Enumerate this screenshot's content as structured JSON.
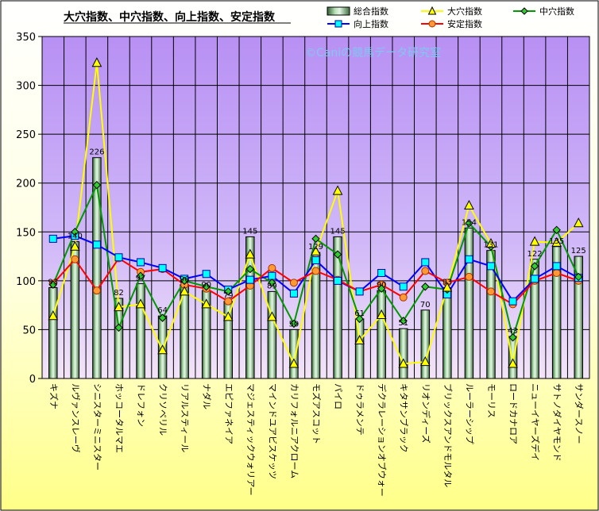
{
  "chart_data": {
    "type": "bar",
    "title": "大穴指数、中穴指数、向上指数、安定指数",
    "watermark": "©Caniの競馬データ研究室",
    "categories": [
      "キズナ",
      "ルヴァンスレーヴ",
      "シニスターミニスター",
      "ホッコータルマエ",
      "ドレフォン",
      "クリソベリル",
      "リアルスティール",
      "ナダル",
      "エピファネイア",
      "マジェスティックウォリアー",
      "マインドユアビスケッツ",
      "カリフォルニアクローム",
      "モズアスコット",
      "パイロ",
      "ドゥラメンテ",
      "デクラレーションオブウォー",
      "キタサンブラック",
      "リオンディーズ",
      "ブリックスアンドモルタル",
      "ルーラーシップ",
      "モーリス",
      "ロードカナロア",
      "ニューイヤーズデイ",
      "サトノダイヤモンド",
      "サンダースノー"
    ],
    "ylim": [
      0,
      350
    ],
    "yticks": [
      0,
      50,
      100,
      150,
      200,
      250,
      300,
      350
    ],
    "grid": true,
    "legend_position": "top",
    "series": [
      {
        "name": "総合指数",
        "kind": "bar",
        "color": "#C8EEC8",
        "values": [
          93,
          140,
          226,
          82,
          97,
          64,
          96,
          90,
          79,
          145,
          89,
          50,
          129,
          145,
          61,
          90,
          51,
          70,
          93,
          154,
          131,
          43,
          122,
          135,
          125
        ],
        "labels": [
          "93",
          "140",
          "226",
          "82",
          "97",
          "64",
          "96",
          "90",
          "79",
          "145",
          "89",
          "50",
          "129",
          "145",
          "61",
          "90",
          "51",
          "70",
          "93",
          "154",
          "131",
          "43",
          "122",
          "135",
          "125"
        ]
      },
      {
        "name": "大穴指数",
        "kind": "line",
        "color": "#FFFF00",
        "marker": "triangle",
        "values": [
          64,
          135,
          323,
          73,
          76,
          29,
          89,
          76,
          63,
          127,
          63,
          15,
          130,
          192,
          39,
          65,
          15,
          17,
          93,
          177,
          138,
          15,
          140,
          139,
          159
        ]
      },
      {
        "name": "中穴指数",
        "kind": "line",
        "color": "#009900",
        "marker": "diamond",
        "values": [
          96,
          150,
          198,
          52,
          105,
          62,
          100,
          94,
          89,
          112,
          98,
          56,
          143,
          127,
          61,
          92,
          59,
          94,
          91,
          159,
          135,
          42,
          115,
          152,
          104
        ]
      },
      {
        "name": "向上指数",
        "kind": "line",
        "color": "#0000FF",
        "marker": "square",
        "values": [
          143,
          146,
          137,
          124,
          119,
          113,
          102,
          107,
          91,
          101,
          105,
          87,
          121,
          100,
          89,
          108,
          94,
          119,
          86,
          122,
          115,
          79,
          102,
          115,
          103
        ]
      },
      {
        "name": "安定指数",
        "kind": "line",
        "color": "#FF0000",
        "marker": "circle",
        "values": [
          97,
          122,
          90,
          123,
          109,
          112,
          96,
          92,
          79,
          95,
          113,
          98,
          110,
          101,
          89,
          96,
          83,
          110,
          98,
          104,
          89,
          76,
          100,
          108,
          100
        ]
      }
    ]
  }
}
